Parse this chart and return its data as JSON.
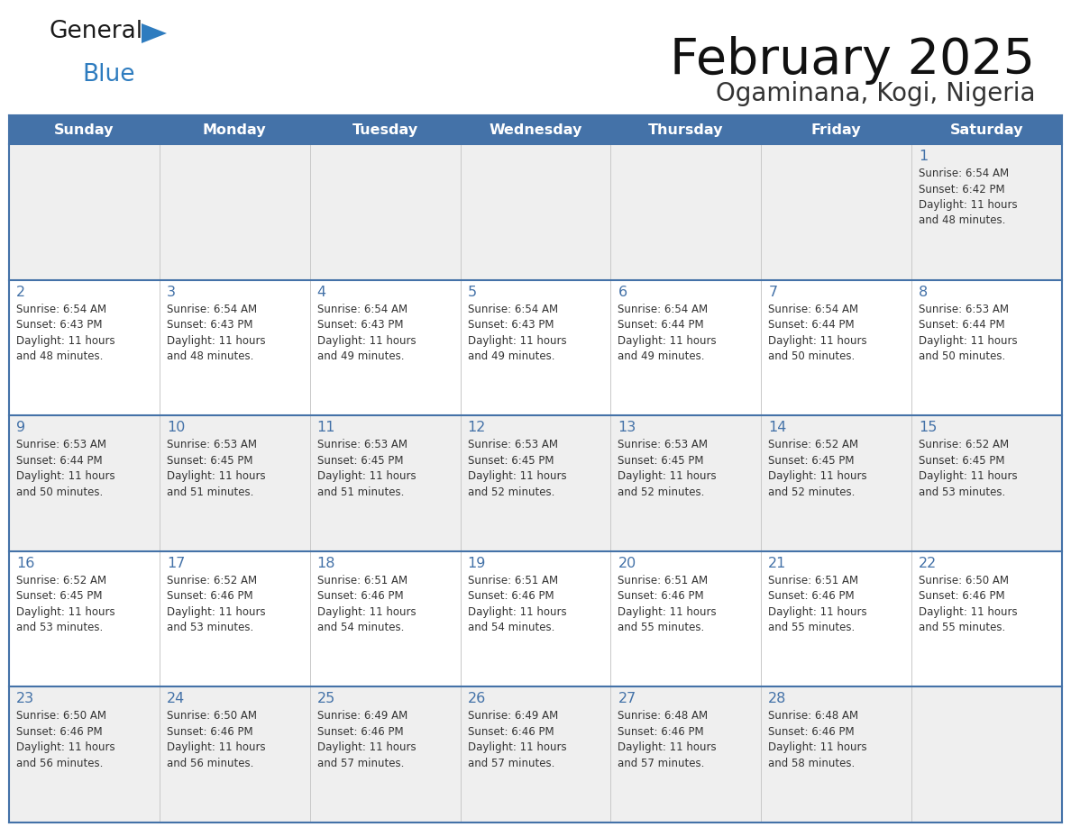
{
  "title": "February 2025",
  "subtitle": "Ogaminana, Kogi, Nigeria",
  "header_bg": "#4472a8",
  "header_text": "#ffffff",
  "days_of_week": [
    "Sunday",
    "Monday",
    "Tuesday",
    "Wednesday",
    "Thursday",
    "Friday",
    "Saturday"
  ],
  "row_bg_odd": "#efefef",
  "row_bg_even": "#ffffff",
  "cell_border": "#4472a8",
  "day_number_color": "#4472a8",
  "info_text_color": "#333333",
  "calendar_data": [
    [
      null,
      null,
      null,
      null,
      null,
      null,
      {
        "day": 1,
        "sunrise": "6:54 AM",
        "sunset": "6:42 PM",
        "daylight": "11 hours\nand 48 minutes."
      }
    ],
    [
      {
        "day": 2,
        "sunrise": "6:54 AM",
        "sunset": "6:43 PM",
        "daylight": "11 hours\nand 48 minutes."
      },
      {
        "day": 3,
        "sunrise": "6:54 AM",
        "sunset": "6:43 PM",
        "daylight": "11 hours\nand 48 minutes."
      },
      {
        "day": 4,
        "sunrise": "6:54 AM",
        "sunset": "6:43 PM",
        "daylight": "11 hours\nand 49 minutes."
      },
      {
        "day": 5,
        "sunrise": "6:54 AM",
        "sunset": "6:43 PM",
        "daylight": "11 hours\nand 49 minutes."
      },
      {
        "day": 6,
        "sunrise": "6:54 AM",
        "sunset": "6:44 PM",
        "daylight": "11 hours\nand 49 minutes."
      },
      {
        "day": 7,
        "sunrise": "6:54 AM",
        "sunset": "6:44 PM",
        "daylight": "11 hours\nand 50 minutes."
      },
      {
        "day": 8,
        "sunrise": "6:53 AM",
        "sunset": "6:44 PM",
        "daylight": "11 hours\nand 50 minutes."
      }
    ],
    [
      {
        "day": 9,
        "sunrise": "6:53 AM",
        "sunset": "6:44 PM",
        "daylight": "11 hours\nand 50 minutes."
      },
      {
        "day": 10,
        "sunrise": "6:53 AM",
        "sunset": "6:45 PM",
        "daylight": "11 hours\nand 51 minutes."
      },
      {
        "day": 11,
        "sunrise": "6:53 AM",
        "sunset": "6:45 PM",
        "daylight": "11 hours\nand 51 minutes."
      },
      {
        "day": 12,
        "sunrise": "6:53 AM",
        "sunset": "6:45 PM",
        "daylight": "11 hours\nand 52 minutes."
      },
      {
        "day": 13,
        "sunrise": "6:53 AM",
        "sunset": "6:45 PM",
        "daylight": "11 hours\nand 52 minutes."
      },
      {
        "day": 14,
        "sunrise": "6:52 AM",
        "sunset": "6:45 PM",
        "daylight": "11 hours\nand 52 minutes."
      },
      {
        "day": 15,
        "sunrise": "6:52 AM",
        "sunset": "6:45 PM",
        "daylight": "11 hours\nand 53 minutes."
      }
    ],
    [
      {
        "day": 16,
        "sunrise": "6:52 AM",
        "sunset": "6:45 PM",
        "daylight": "11 hours\nand 53 minutes."
      },
      {
        "day": 17,
        "sunrise": "6:52 AM",
        "sunset": "6:46 PM",
        "daylight": "11 hours\nand 53 minutes."
      },
      {
        "day": 18,
        "sunrise": "6:51 AM",
        "sunset": "6:46 PM",
        "daylight": "11 hours\nand 54 minutes."
      },
      {
        "day": 19,
        "sunrise": "6:51 AM",
        "sunset": "6:46 PM",
        "daylight": "11 hours\nand 54 minutes."
      },
      {
        "day": 20,
        "sunrise": "6:51 AM",
        "sunset": "6:46 PM",
        "daylight": "11 hours\nand 55 minutes."
      },
      {
        "day": 21,
        "sunrise": "6:51 AM",
        "sunset": "6:46 PM",
        "daylight": "11 hours\nand 55 minutes."
      },
      {
        "day": 22,
        "sunrise": "6:50 AM",
        "sunset": "6:46 PM",
        "daylight": "11 hours\nand 55 minutes."
      }
    ],
    [
      {
        "day": 23,
        "sunrise": "6:50 AM",
        "sunset": "6:46 PM",
        "daylight": "11 hours\nand 56 minutes."
      },
      {
        "day": 24,
        "sunrise": "6:50 AM",
        "sunset": "6:46 PM",
        "daylight": "11 hours\nand 56 minutes."
      },
      {
        "day": 25,
        "sunrise": "6:49 AM",
        "sunset": "6:46 PM",
        "daylight": "11 hours\nand 57 minutes."
      },
      {
        "day": 26,
        "sunrise": "6:49 AM",
        "sunset": "6:46 PM",
        "daylight": "11 hours\nand 57 minutes."
      },
      {
        "day": 27,
        "sunrise": "6:48 AM",
        "sunset": "6:46 PM",
        "daylight": "11 hours\nand 57 minutes."
      },
      {
        "day": 28,
        "sunrise": "6:48 AM",
        "sunset": "6:46 PM",
        "daylight": "11 hours\nand 58 minutes."
      },
      null
    ]
  ]
}
